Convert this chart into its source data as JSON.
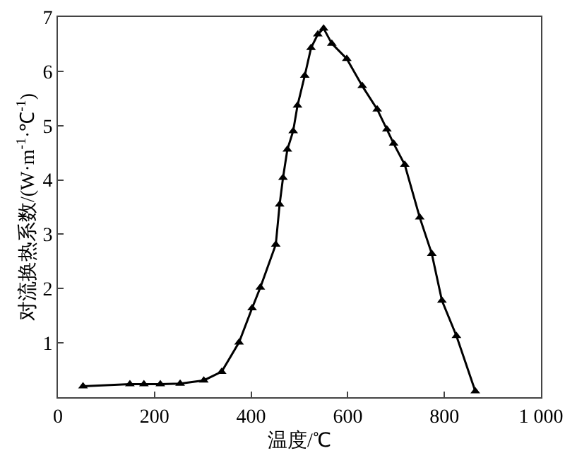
{
  "chart_data": {
    "type": "line",
    "xlabel": "温度/℃",
    "ylabel": "对流换热系数/(W·m$^{-1}$·℃$^{-1}$)",
    "x": [
      52,
      149,
      178,
      212,
      253,
      302,
      339,
      375,
      402,
      419,
      451,
      459,
      466,
      475,
      487,
      496,
      511,
      524,
      538,
      550,
      567,
      598,
      630,
      661,
      681,
      695,
      718,
      749,
      774,
      795,
      825,
      864
    ],
    "series": [
      {
        "color": "#000000",
        "values": [
          0.2,
          0.24,
          0.24,
          0.24,
          0.25,
          0.31,
          0.47,
          1.01,
          1.64,
          2.02,
          2.81,
          3.55,
          4.04,
          4.56,
          4.9,
          5.37,
          5.92,
          6.43,
          6.68,
          6.79,
          6.51,
          6.23,
          5.73,
          5.3,
          4.93,
          4.67,
          4.28,
          3.31,
          2.64,
          1.78,
          1.13,
          0.11
        ]
      }
    ],
    "xlim": [
      0,
      1000
    ],
    "xticks": [
      0,
      200,
      400,
      600,
      800,
      {
        "value": 1000,
        "label": "1 000"
      }
    ],
    "ylim": [
      0,
      7
    ],
    "yticks": [
      {
        "value": 0,
        "label": null
      },
      1,
      2,
      3,
      4,
      5,
      6,
      7
    ],
    "grid": false,
    "legend": false,
    "marker": "triangle",
    "line_style": "solid"
  }
}
